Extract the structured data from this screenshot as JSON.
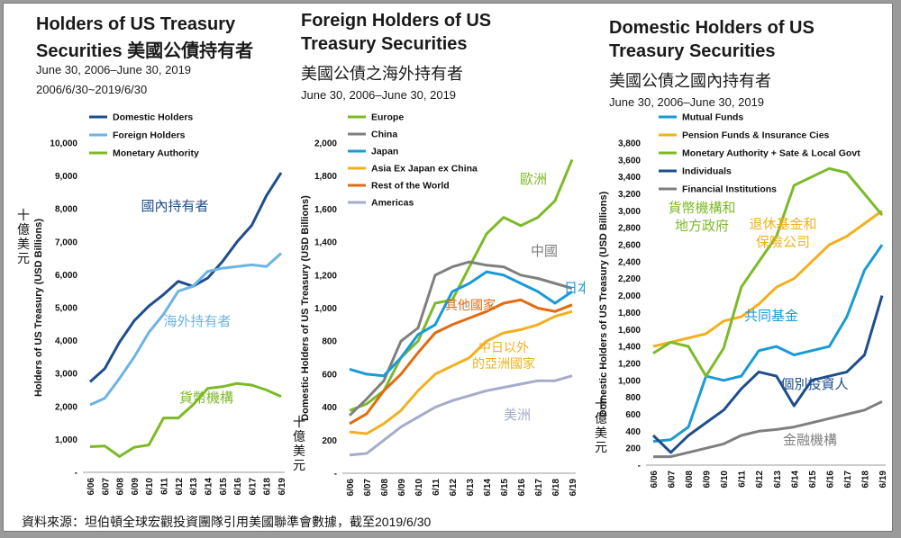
{
  "source_note": "資料來源：坦伯頓全球宏觀投資團隊引用美國聯準會數據，截至2019/6/30",
  "chart_data": [
    {
      "type": "line",
      "title_lines": [
        "Holders of US Treasury",
        "Securities 美國公債持有者"
      ],
      "subtitle_lines": [
        "June 30, 2006–June 30, 2019",
        "2006/6/30~2019/6/30"
      ],
      "ylabel": "Holders of US Treasury (USD Billions)",
      "ylabel_cn": "十億美元",
      "ylim": [
        0,
        10000
      ],
      "yticks": [
        0,
        1000,
        2000,
        3000,
        4000,
        5000,
        6000,
        7000,
        8000,
        9000,
        10000
      ],
      "ytick_labels": [
        "-",
        "1,000",
        "2,000",
        "3,000",
        "4,000",
        "5,000",
        "6,000",
        "7,000",
        "8,000",
        "9,000",
        "10,000"
      ],
      "categories": [
        "6/06",
        "6/07",
        "6/08",
        "6/09",
        "6/10",
        "6/11",
        "6/12",
        "6/13",
        "6/14",
        "6/15",
        "6/16",
        "6/17",
        "6/18",
        "6/19"
      ],
      "legend": "top-left",
      "series": [
        {
          "name": "Domestic Holders",
          "color": "#1f4e8c",
          "annotation": "國內持有者",
          "values": [
            2750,
            3150,
            3950,
            4600,
            5050,
            5400,
            5800,
            5650,
            5900,
            6400,
            7000,
            7500,
            8400,
            9100
          ]
        },
        {
          "name": "Foreign Holders",
          "color": "#6cb4e4",
          "annotation": "海外持有者",
          "values": [
            2050,
            2250,
            2850,
            3500,
            4250,
            4800,
            5500,
            5650,
            6100,
            6200,
            6250,
            6300,
            6250,
            6650
          ]
        },
        {
          "name": "Monetary Authority",
          "color": "#7cba27",
          "annotation": "貨幣機構",
          "values": [
            780,
            800,
            480,
            760,
            830,
            1650,
            1650,
            2050,
            2550,
            2600,
            2700,
            2650,
            2500,
            2300
          ]
        }
      ]
    },
    {
      "type": "line",
      "title_lines": [
        "Foreign Holders of US",
        "Treasury Securities",
        "美國公債之海外持有者"
      ],
      "subtitle_lines": [
        "June 30, 2006–June 30, 2019"
      ],
      "ylabel": "Domestic Holders of US Treasury (USD Billions)",
      "ylabel_cn": "十億美元",
      "ylim": [
        0,
        2000
      ],
      "yticks": [
        0,
        200,
        400,
        600,
        800,
        1000,
        1200,
        1400,
        1600,
        1800,
        2000
      ],
      "ytick_labels": [
        "-",
        "200",
        "400",
        "600",
        "800",
        "1,000",
        "1,200",
        "1,400",
        "1,600",
        "1,800",
        "2,000"
      ],
      "categories": [
        "6/06",
        "6/07",
        "6/08",
        "6/09",
        "6/10",
        "6/11",
        "6/12",
        "6/13",
        "6/14",
        "6/15",
        "6/16",
        "6/17",
        "6/18",
        "6/19"
      ],
      "legend": "top-left",
      "series": [
        {
          "name": "Europe",
          "color": "#7cba27",
          "annotation": "歐洲",
          "values": [
            380,
            420,
            500,
            700,
            800,
            1030,
            1050,
            1250,
            1450,
            1550,
            1500,
            1550,
            1650,
            1900
          ]
        },
        {
          "name": "China",
          "color": "#7f7f7f",
          "annotation": "中國",
          "values": [
            350,
            450,
            560,
            800,
            880,
            1200,
            1250,
            1280,
            1260,
            1250,
            1200,
            1180,
            1150,
            1120
          ]
        },
        {
          "name": "Japan",
          "color": "#1a9ad6",
          "annotation": "日本",
          "values": [
            630,
            600,
            590,
            700,
            840,
            900,
            1100,
            1150,
            1220,
            1200,
            1150,
            1100,
            1030,
            1100
          ]
        },
        {
          "name": "Asia Ex Japan ex China",
          "color": "#f2b01e",
          "annotation": "中日以外的亞洲國家",
          "values": [
            250,
            240,
            300,
            380,
            500,
            600,
            650,
            700,
            800,
            850,
            870,
            900,
            950,
            980
          ]
        },
        {
          "name": "Rest of the World",
          "color": "#e26b10",
          "annotation": "其他國家",
          "values": [
            300,
            360,
            500,
            600,
            730,
            850,
            900,
            940,
            980,
            1030,
            1050,
            1000,
            980,
            1020
          ]
        },
        {
          "name": "Americas",
          "color": "#a5acc9",
          "annotation": "美洲",
          "values": [
            110,
            120,
            200,
            280,
            340,
            400,
            440,
            470,
            500,
            520,
            540,
            560,
            560,
            590
          ]
        }
      ]
    },
    {
      "type": "line",
      "title_lines": [
        "Domestic Holders of US",
        "Treasury Securities",
        "美國公債之國內持有者"
      ],
      "subtitle_lines": [
        "June 30, 2006–June 30, 2019"
      ],
      "ylabel": "Domestic Holders of US Treasury (USD Billions)",
      "ylabel_cn": "十億美元",
      "ylim": [
        0,
        3800
      ],
      "yticks": [
        0,
        200,
        400,
        600,
        800,
        1000,
        1200,
        1400,
        1600,
        1800,
        2000,
        2200,
        2400,
        2600,
        2800,
        3000,
        3200,
        3400,
        3600,
        3800
      ],
      "ytick_labels": [
        "-",
        "200",
        "400",
        "600",
        "800",
        "1,000",
        "1,200",
        "1,400",
        "1,600",
        "1,800",
        "2,000",
        "2,200",
        "2,400",
        "2,600",
        "2,800",
        "3,000",
        "3,200",
        "3,400",
        "3,600",
        "3,800"
      ],
      "categories": [
        "6/06",
        "6/07",
        "6/08",
        "6/09",
        "6/10",
        "6/11",
        "6/12",
        "6/13",
        "6/14",
        "6/15",
        "6/16",
        "6/17",
        "6/18",
        "6/19"
      ],
      "legend": "top-left",
      "series": [
        {
          "name": "Mutual Funds",
          "color": "#1a9ad6",
          "annotation": "共同基金",
          "values": [
            280,
            300,
            450,
            1050,
            1000,
            1050,
            1350,
            1400,
            1300,
            1350,
            1400,
            1750,
            2300,
            2600
          ]
        },
        {
          "name": "Pension Funds & Insurance Cies",
          "color": "#f2b01e",
          "annotation": "退休基金和保險公司",
          "values": [
            1400,
            1450,
            1500,
            1550,
            1700,
            1750,
            1900,
            2100,
            2200,
            2400,
            2600,
            2700,
            2850,
            3000
          ]
        },
        {
          "name": "Monetary Authority + Sate & Local Govt",
          "color": "#7cba27",
          "annotation": "貨幣機構和地方政府",
          "values": [
            1320,
            1450,
            1400,
            1050,
            1380,
            2100,
            2400,
            2700,
            3300,
            3400,
            3500,
            3450,
            3200,
            2950
          ]
        },
        {
          "name": "Individuals",
          "color": "#1f4e8c",
          "annotation": "個別投資人",
          "values": [
            350,
            150,
            350,
            500,
            650,
            900,
            1100,
            1050,
            700,
            1000,
            1050,
            1100,
            1300,
            2000
          ]
        },
        {
          "name": "Financial Institutions",
          "color": "#7f7f7f",
          "annotation": "金融機構",
          "values": [
            100,
            100,
            150,
            200,
            250,
            350,
            400,
            420,
            450,
            500,
            550,
            600,
            650,
            750
          ]
        }
      ]
    }
  ]
}
